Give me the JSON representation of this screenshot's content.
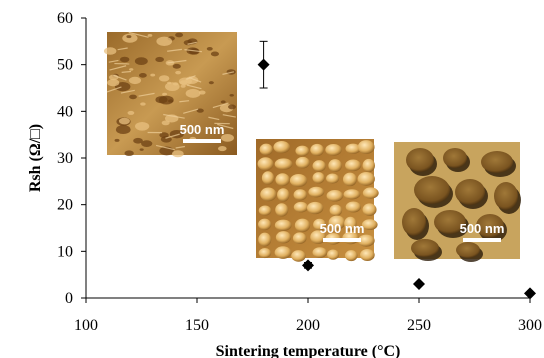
{
  "chart_data": {
    "type": "scatter",
    "xlabel": "Sintering temperature (°C)",
    "ylabel": "Rsh (Ω/□)",
    "xlim": [
      100,
      300
    ],
    "ylim": [
      0,
      60
    ],
    "xticks": [
      100,
      150,
      200,
      250,
      300
    ],
    "yticks": [
      0,
      10,
      20,
      30,
      40,
      50,
      60
    ],
    "grid": false,
    "marker": "diamond",
    "colors": {
      "marker": "#000000",
      "axis": "#000000"
    },
    "points": [
      {
        "x": 180,
        "y": 50,
        "err": 5
      },
      {
        "x": 200,
        "y": 7,
        "err": 0.6
      },
      {
        "x": 250,
        "y": 3,
        "err": 0.3
      },
      {
        "x": 300,
        "y": 1,
        "err": 0.1
      }
    ],
    "insets": [
      {
        "name": "afm-image-low-temp",
        "scale_label": "500 nm"
      },
      {
        "name": "afm-image-mid-temp",
        "scale_label": "500 nm"
      },
      {
        "name": "afm-image-high-temp",
        "scale_label": "500 nm"
      }
    ]
  }
}
